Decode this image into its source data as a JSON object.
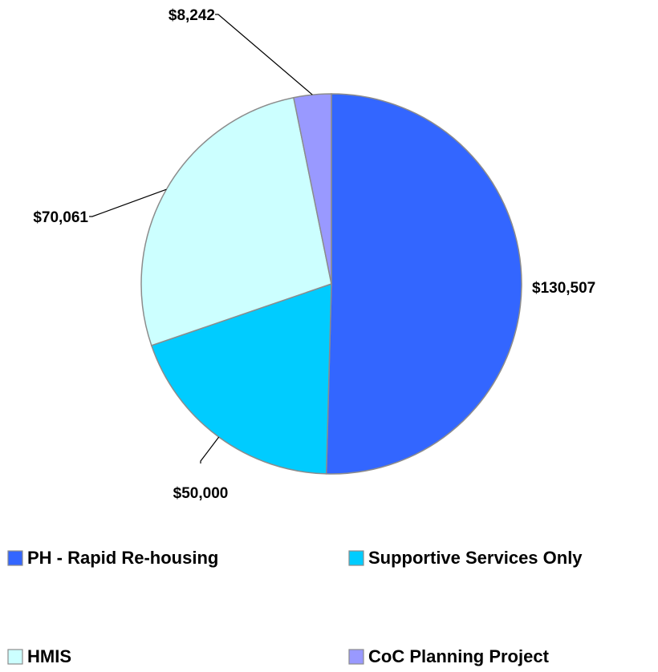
{
  "chart_data": {
    "type": "pie",
    "categories": [
      "PH - Rapid Re-housing",
      "Supportive Services Only",
      "HMIS",
      "CoC Planning Project"
    ],
    "values": [
      130507,
      50000,
      70061,
      8242
    ],
    "value_labels": [
      "$130,507",
      "$50,000",
      "$70,061",
      "$8,242"
    ],
    "colors": [
      "#3366ff",
      "#00ccff",
      "#ccffff",
      "#9999ff"
    ],
    "legend": "bottom"
  }
}
